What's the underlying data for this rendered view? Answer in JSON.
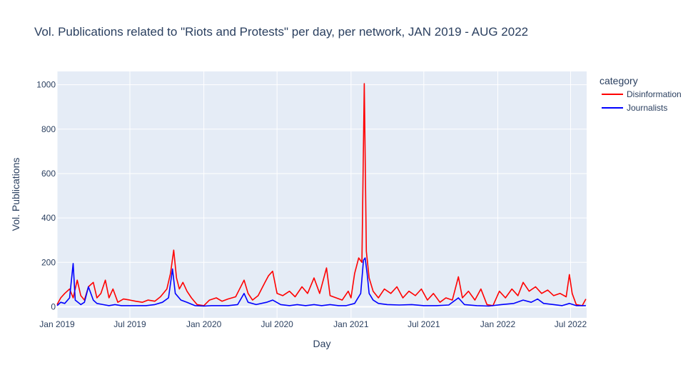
{
  "chart_data": {
    "type": "line",
    "title": "Vol. Publications related to \"Riots and Protests\" per day, per network, JAN 2019 - AUG 2022",
    "xlabel": "Day",
    "ylabel": "Vol. Publications",
    "x_range": [
      "2019-01-01",
      "2022-08-10"
    ],
    "ylim": [
      -50,
      1060
    ],
    "y_ticks": [
      0,
      200,
      400,
      600,
      800,
      1000
    ],
    "x_ticks": [
      {
        "date": "2019-01-01",
        "label": "Jan 2019"
      },
      {
        "date": "2019-07-01",
        "label": "Jul 2019"
      },
      {
        "date": "2020-01-01",
        "label": "Jan 2020"
      },
      {
        "date": "2020-07-01",
        "label": "Jul 2020"
      },
      {
        "date": "2021-01-01",
        "label": "Jan 2021"
      },
      {
        "date": "2021-07-01",
        "label": "Jul 2021"
      },
      {
        "date": "2022-01-01",
        "label": "Jan 2022"
      },
      {
        "date": "2022-07-01",
        "label": "Jul 2022"
      }
    ],
    "grid": true,
    "legend": {
      "title": "category",
      "placement": "right"
    },
    "series": [
      {
        "name": "Disinformation",
        "color": "#ff0000",
        "points": [
          [
            "2019-01-01",
            10
          ],
          [
            "2019-01-10",
            40
          ],
          [
            "2019-01-20",
            60
          ],
          [
            "2019-02-01",
            80
          ],
          [
            "2019-02-10",
            40
          ],
          [
            "2019-02-20",
            120
          ],
          [
            "2019-03-01",
            50
          ],
          [
            "2019-03-10",
            30
          ],
          [
            "2019-03-20",
            90
          ],
          [
            "2019-04-01",
            110
          ],
          [
            "2019-04-10",
            40
          ],
          [
            "2019-04-20",
            60
          ],
          [
            "2019-05-01",
            120
          ],
          [
            "2019-05-10",
            40
          ],
          [
            "2019-05-20",
            80
          ],
          [
            "2019-06-01",
            20
          ],
          [
            "2019-06-15",
            35
          ],
          [
            "2019-07-01",
            30
          ],
          [
            "2019-07-15",
            25
          ],
          [
            "2019-08-01",
            20
          ],
          [
            "2019-08-15",
            30
          ],
          [
            "2019-09-01",
            25
          ],
          [
            "2019-09-15",
            45
          ],
          [
            "2019-10-01",
            80
          ],
          [
            "2019-10-10",
            150
          ],
          [
            "2019-10-18",
            255
          ],
          [
            "2019-10-25",
            130
          ],
          [
            "2019-11-01",
            80
          ],
          [
            "2019-11-10",
            110
          ],
          [
            "2019-11-20",
            70
          ],
          [
            "2019-12-01",
            40
          ],
          [
            "2019-12-15",
            10
          ],
          [
            "2020-01-01",
            5
          ],
          [
            "2020-01-15",
            30
          ],
          [
            "2020-02-01",
            40
          ],
          [
            "2020-02-15",
            25
          ],
          [
            "2020-03-01",
            35
          ],
          [
            "2020-03-20",
            45
          ],
          [
            "2020-04-10",
            120
          ],
          [
            "2020-04-20",
            60
          ],
          [
            "2020-05-01",
            30
          ],
          [
            "2020-05-15",
            50
          ],
          [
            "2020-06-01",
            110
          ],
          [
            "2020-06-10",
            140
          ],
          [
            "2020-06-20",
            160
          ],
          [
            "2020-07-01",
            60
          ],
          [
            "2020-07-15",
            50
          ],
          [
            "2020-08-01",
            70
          ],
          [
            "2020-08-15",
            45
          ],
          [
            "2020-09-01",
            90
          ],
          [
            "2020-09-15",
            60
          ],
          [
            "2020-10-01",
            130
          ],
          [
            "2020-10-15",
            60
          ],
          [
            "2020-11-01",
            175
          ],
          [
            "2020-11-10",
            50
          ],
          [
            "2020-11-25",
            40
          ],
          [
            "2020-12-10",
            30
          ],
          [
            "2020-12-25",
            70
          ],
          [
            "2021-01-01",
            40
          ],
          [
            "2021-01-10",
            150
          ],
          [
            "2021-01-20",
            220
          ],
          [
            "2021-01-28",
            200
          ],
          [
            "2021-02-03",
            1005
          ],
          [
            "2021-02-08",
            250
          ],
          [
            "2021-02-15",
            130
          ],
          [
            "2021-02-25",
            70
          ],
          [
            "2021-03-10",
            40
          ],
          [
            "2021-03-25",
            80
          ],
          [
            "2021-04-10",
            60
          ],
          [
            "2021-04-25",
            90
          ],
          [
            "2021-05-10",
            40
          ],
          [
            "2021-05-25",
            70
          ],
          [
            "2021-06-10",
            50
          ],
          [
            "2021-06-25",
            80
          ],
          [
            "2021-07-10",
            30
          ],
          [
            "2021-07-25",
            60
          ],
          [
            "2021-08-10",
            20
          ],
          [
            "2021-08-25",
            40
          ],
          [
            "2021-09-10",
            30
          ],
          [
            "2021-09-25",
            135
          ],
          [
            "2021-10-05",
            40
          ],
          [
            "2021-10-20",
            70
          ],
          [
            "2021-11-05",
            30
          ],
          [
            "2021-11-20",
            80
          ],
          [
            "2021-12-05",
            10
          ],
          [
            "2021-12-20",
            5
          ],
          [
            "2022-01-05",
            70
          ],
          [
            "2022-01-20",
            40
          ],
          [
            "2022-02-05",
            80
          ],
          [
            "2022-02-20",
            50
          ],
          [
            "2022-03-05",
            110
          ],
          [
            "2022-03-20",
            70
          ],
          [
            "2022-04-05",
            90
          ],
          [
            "2022-04-20",
            60
          ],
          [
            "2022-05-05",
            75
          ],
          [
            "2022-05-20",
            50
          ],
          [
            "2022-06-05",
            60
          ],
          [
            "2022-06-20",
            45
          ],
          [
            "2022-06-28",
            145
          ],
          [
            "2022-07-05",
            60
          ],
          [
            "2022-07-15",
            10
          ],
          [
            "2022-07-30",
            5
          ],
          [
            "2022-08-08",
            35
          ]
        ]
      },
      {
        "name": "Journalists",
        "color": "#0000ff",
        "points": [
          [
            "2019-01-01",
            5
          ],
          [
            "2019-01-10",
            20
          ],
          [
            "2019-01-20",
            15
          ],
          [
            "2019-02-01",
            40
          ],
          [
            "2019-02-10",
            195
          ],
          [
            "2019-02-15",
            30
          ],
          [
            "2019-03-01",
            10
          ],
          [
            "2019-03-10",
            20
          ],
          [
            "2019-03-20",
            90
          ],
          [
            "2019-04-01",
            30
          ],
          [
            "2019-04-10",
            15
          ],
          [
            "2019-04-25",
            10
          ],
          [
            "2019-05-10",
            5
          ],
          [
            "2019-05-25",
            10
          ],
          [
            "2019-06-10",
            5
          ],
          [
            "2019-07-01",
            5
          ],
          [
            "2019-07-20",
            5
          ],
          [
            "2019-08-10",
            5
          ],
          [
            "2019-09-01",
            10
          ],
          [
            "2019-09-20",
            20
          ],
          [
            "2019-10-05",
            40
          ],
          [
            "2019-10-15",
            170
          ],
          [
            "2019-10-22",
            60
          ],
          [
            "2019-11-05",
            30
          ],
          [
            "2019-11-20",
            20
          ],
          [
            "2019-12-10",
            5
          ],
          [
            "2020-01-01",
            3
          ],
          [
            "2020-01-20",
            5
          ],
          [
            "2020-02-10",
            5
          ],
          [
            "2020-03-01",
            5
          ],
          [
            "2020-03-25",
            10
          ],
          [
            "2020-04-10",
            60
          ],
          [
            "2020-04-20",
            20
          ],
          [
            "2020-05-10",
            10
          ],
          [
            "2020-06-05",
            20
          ],
          [
            "2020-06-20",
            30
          ],
          [
            "2020-07-10",
            10
          ],
          [
            "2020-08-01",
            5
          ],
          [
            "2020-08-20",
            10
          ],
          [
            "2020-09-10",
            5
          ],
          [
            "2020-10-01",
            10
          ],
          [
            "2020-10-20",
            5
          ],
          [
            "2020-11-10",
            10
          ],
          [
            "2020-12-01",
            5
          ],
          [
            "2020-12-20",
            5
          ],
          [
            "2021-01-10",
            15
          ],
          [
            "2021-01-25",
            60
          ],
          [
            "2021-02-01",
            210
          ],
          [
            "2021-02-05",
            220
          ],
          [
            "2021-02-10",
            150
          ],
          [
            "2021-02-15",
            60
          ],
          [
            "2021-02-25",
            30
          ],
          [
            "2021-03-10",
            15
          ],
          [
            "2021-04-01",
            10
          ],
          [
            "2021-05-01",
            8
          ],
          [
            "2021-06-01",
            10
          ],
          [
            "2021-07-01",
            5
          ],
          [
            "2021-08-01",
            5
          ],
          [
            "2021-09-01",
            8
          ],
          [
            "2021-09-25",
            40
          ],
          [
            "2021-10-10",
            10
          ],
          [
            "2021-11-10",
            5
          ],
          [
            "2021-12-10",
            3
          ],
          [
            "2022-01-10",
            10
          ],
          [
            "2022-02-10",
            15
          ],
          [
            "2022-03-05",
            30
          ],
          [
            "2022-03-25",
            20
          ],
          [
            "2022-04-10",
            35
          ],
          [
            "2022-04-25",
            15
          ],
          [
            "2022-05-20",
            10
          ],
          [
            "2022-06-10",
            5
          ],
          [
            "2022-06-28",
            15
          ],
          [
            "2022-07-15",
            5
          ],
          [
            "2022-08-08",
            5
          ]
        ]
      }
    ]
  }
}
